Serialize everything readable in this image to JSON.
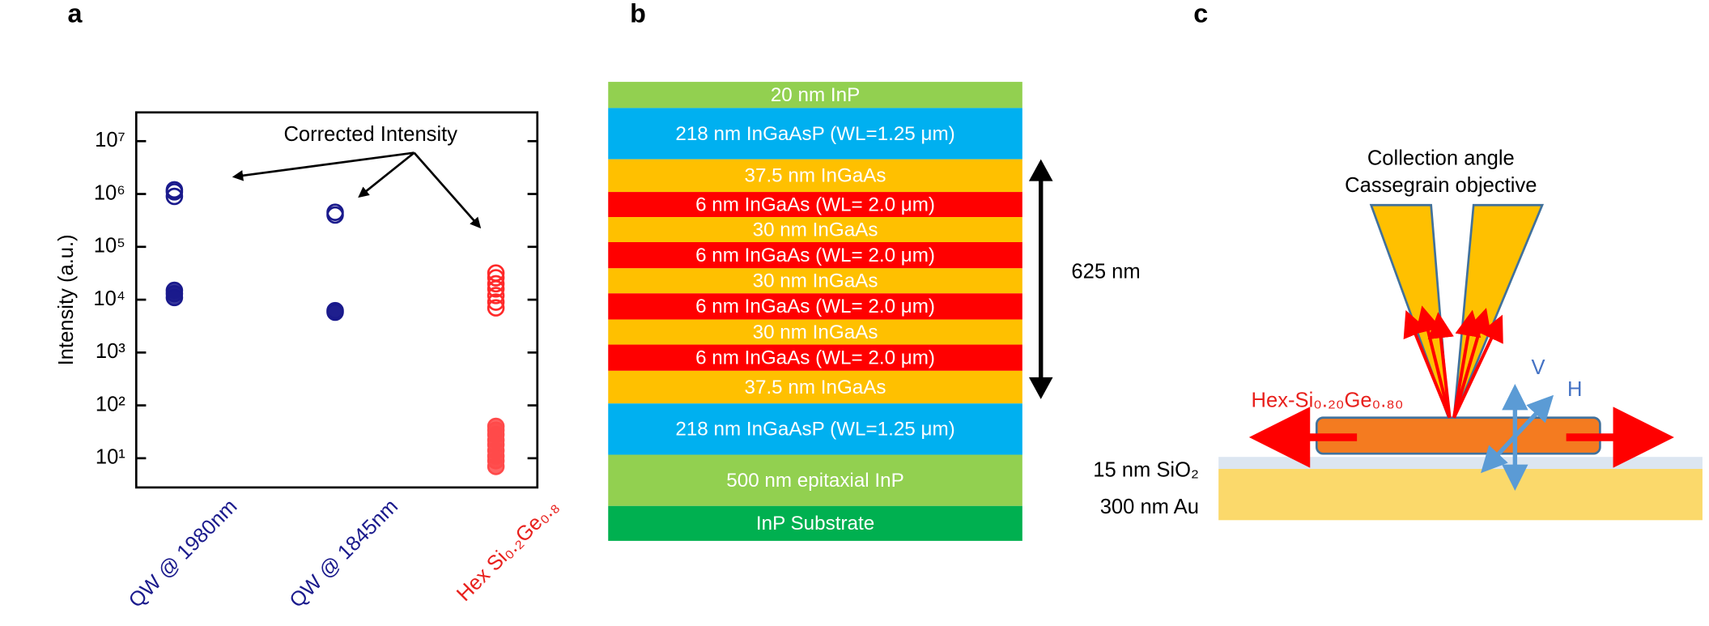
{
  "panels": [
    "a",
    "b",
    "c"
  ],
  "chart_data": {
    "type": "scatter",
    "ylabel": "Intensity (a.u.)",
    "log_y": true,
    "ylim": [
      2.8,
      35000000
    ],
    "yticks": [
      {
        "value": 10,
        "label": "10¹"
      },
      {
        "value": 100,
        "label": "10²"
      },
      {
        "value": 1000,
        "label": "10³"
      },
      {
        "value": 10000,
        "label": "10⁴"
      },
      {
        "value": 100000,
        "label": "10⁵"
      },
      {
        "value": 1000000,
        "label": "10⁶"
      },
      {
        "value": 10000000,
        "label": "10⁷"
      }
    ],
    "categories": [
      "QW @ 1980nm",
      "QW @ 1845nm",
      "Hex Si₀.₂Ge₀.₈"
    ],
    "category_colors": [
      "#1a1a8c",
      "#1a1a8c",
      "#e8201c"
    ],
    "annotation": "Corrected Intensity",
    "series": [
      {
        "marker": "open",
        "colors": [
          "#1a1a8c",
          "#1a1a8c",
          "#ff2a2a"
        ],
        "values": [
          [
            900000,
            1100000,
            1200000
          ],
          [
            400000,
            450000
          ],
          [
            7000,
            9000,
            12000,
            16000,
            20000,
            26000,
            32000
          ]
        ]
      },
      {
        "marker": "filled",
        "colors": [
          "#1a1a8c",
          "#1a1a8c",
          "#ff4a4a"
        ],
        "values": [
          [
            11000,
            13000,
            15000
          ],
          [
            5800,
            6200
          ],
          [
            7,
            9,
            11,
            14,
            18,
            22,
            28,
            34,
            40
          ]
        ]
      }
    ]
  },
  "stack": {
    "layers": [
      {
        "label": "20 nm InP",
        "color": "#92d050"
      },
      {
        "label": "218 nm InGaAsP (WL=1.25 μm)",
        "color": "#00b0f0"
      },
      {
        "label": "37.5 nm InGaAs",
        "color": "#ffc000"
      },
      {
        "label": "6 nm InGaAs (WL= 2.0 μm)",
        "color": "#ff0000"
      },
      {
        "label": "30 nm InGaAs",
        "color": "#ffc000"
      },
      {
        "label": "6 nm InGaAs (WL= 2.0 μm)",
        "color": "#ff0000"
      },
      {
        "label": "30 nm InGaAs",
        "color": "#ffc000"
      },
      {
        "label": "6 nm InGaAs (WL= 2.0 μm)",
        "color": "#ff0000"
      },
      {
        "label": "30 nm InGaAs",
        "color": "#ffc000"
      },
      {
        "label": "6 nm InGaAs (WL= 2.0 μm)",
        "color": "#ff0000"
      },
      {
        "label": "37.5 nm InGaAs",
        "color": "#ffc000"
      },
      {
        "label": "218 nm InGaAsP (WL=1.25 μm)",
        "color": "#00b0f0"
      },
      {
        "label": "500 nm epitaxial InP",
        "color": "#92d050"
      },
      {
        "label": "InP Substrate",
        "color": "#00b050"
      }
    ],
    "thickness_label": "625 nm"
  },
  "setup": {
    "collection_label": [
      "Collection angle",
      "Cassegrain objective"
    ],
    "wire_label": "Hex-Si₀.₂₀Ge₀.₈₀",
    "polarization": [
      "V",
      "H"
    ],
    "layers": [
      "15 nm SiO₂",
      "300 nm Au"
    ]
  }
}
